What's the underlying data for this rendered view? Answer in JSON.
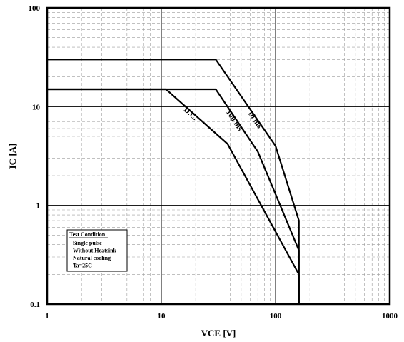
{
  "chart_data": {
    "type": "line",
    "title": "",
    "xlabel": "VCE  [V]",
    "ylabel": "IC  [A]",
    "xscale": "log",
    "yscale": "log",
    "xlim": [
      1,
      1000
    ],
    "ylim": [
      0.1,
      100
    ],
    "grid": true,
    "x_ticks": [
      {
        "value": 1,
        "label": "1"
      },
      {
        "value": 10,
        "label": "10"
      },
      {
        "value": 100,
        "label": "100"
      },
      {
        "value": 1000,
        "label": "1000"
      }
    ],
    "y_ticks": [
      {
        "value": 0.1,
        "label": "0.1"
      },
      {
        "value": 1,
        "label": "1"
      },
      {
        "value": 10,
        "label": "10"
      },
      {
        "value": 100,
        "label": "100"
      }
    ],
    "series": [
      {
        "name": "10 ms",
        "points": [
          [
            1,
            30
          ],
          [
            30,
            30
          ],
          [
            100,
            4
          ],
          [
            160,
            0.7
          ],
          [
            160,
            0.1
          ]
        ]
      },
      {
        "name": "100 ms",
        "points": [
          [
            1,
            15
          ],
          [
            30,
            15
          ],
          [
            70,
            3.5
          ],
          [
            160,
            0.35
          ],
          [
            160,
            0.1
          ]
        ]
      },
      {
        "name": "D.C.",
        "points": [
          [
            1,
            15
          ],
          [
            11,
            15
          ],
          [
            38,
            4.2
          ],
          [
            160,
            0.2
          ],
          [
            160,
            0.1
          ]
        ]
      }
    ],
    "legend": {
      "title": "Test Condition",
      "items": [
        "Single pulse",
        "Without Heatsink",
        "Natural cooling",
        "Ta=25C"
      ],
      "placement": "bottom-left"
    }
  }
}
